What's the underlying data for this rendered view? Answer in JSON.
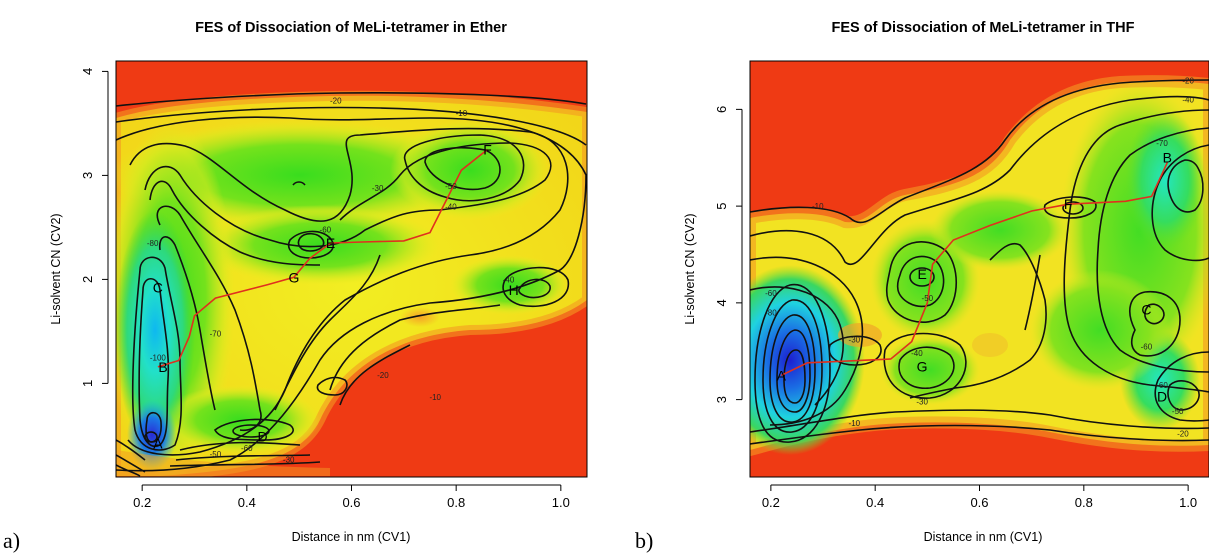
{
  "chart_data": [
    {
      "type": "contour",
      "panel_label": "a)",
      "title": "FES of Dissociation of MeLi-tetramer in Ether",
      "xlabel": "Distance in nm (CV1)",
      "ylabel": "Li-solvent CN (CV2)",
      "xlim": [
        0.15,
        1.05
      ],
      "ylim": [
        0.1,
        4.1
      ],
      "xticks": [
        0.2,
        0.4,
        0.6,
        0.8,
        1.0
      ],
      "xtick_labels": [
        "0.2",
        "0.4",
        "0.6",
        "0.8",
        "1.0"
      ],
      "yticks": [
        1,
        2,
        3,
        4
      ],
      "ytick_labels": [
        "1",
        "2",
        "3",
        "4"
      ],
      "states": [
        {
          "label": "A",
          "x": 0.23,
          "y": 0.42
        },
        {
          "label": "B",
          "x": 0.24,
          "y": 1.16
        },
        {
          "label": "C",
          "x": 0.23,
          "y": 1.92
        },
        {
          "label": "D",
          "x": 0.43,
          "y": 0.49
        },
        {
          "label": "E",
          "x": 0.56,
          "y": 2.35
        },
        {
          "label": "F",
          "x": 0.86,
          "y": 3.25
        },
        {
          "label": "G",
          "x": 0.49,
          "y": 2.02
        },
        {
          "label": "H",
          "x": 0.91,
          "y": 1.9
        }
      ],
      "contour_labels": [
        {
          "text": "-10",
          "x": 0.81,
          "y": 3.6
        },
        {
          "text": "-20",
          "x": 0.57,
          "y": 3.72
        },
        {
          "text": "-30",
          "x": 0.65,
          "y": 2.88
        },
        {
          "text": "-40",
          "x": 0.79,
          "y": 2.7
        },
        {
          "text": "-50",
          "x": 0.79,
          "y": 2.9
        },
        {
          "text": "-60",
          "x": 0.55,
          "y": 2.48
        },
        {
          "text": "-80",
          "x": 0.22,
          "y": 2.35
        },
        {
          "text": "-70",
          "x": 0.34,
          "y": 1.48
        },
        {
          "text": "-100",
          "x": 0.23,
          "y": 1.25
        },
        {
          "text": "-40",
          "x": 0.9,
          "y": 2.0
        },
        {
          "text": "-20",
          "x": 0.66,
          "y": 1.08
        },
        {
          "text": "-10",
          "x": 0.76,
          "y": 0.87
        },
        {
          "text": "-60",
          "x": 0.4,
          "y": 0.38
        },
        {
          "text": "-50",
          "x": 0.34,
          "y": 0.32
        },
        {
          "text": "-30",
          "x": 0.48,
          "y": 0.27
        }
      ],
      "path": [
        [
          0.23,
          1.16
        ],
        [
          0.27,
          1.22
        ],
        [
          0.29,
          1.45
        ],
        [
          0.3,
          1.65
        ],
        [
          0.34,
          1.82
        ],
        [
          0.44,
          1.95
        ],
        [
          0.49,
          2.02
        ],
        [
          0.52,
          2.2
        ],
        [
          0.56,
          2.35
        ],
        [
          0.62,
          2.36
        ],
        [
          0.7,
          2.37
        ],
        [
          0.75,
          2.45
        ],
        [
          0.78,
          2.75
        ],
        [
          0.81,
          3.05
        ],
        [
          0.86,
          3.25
        ]
      ]
    },
    {
      "type": "contour",
      "panel_label": "b)",
      "title": "FES of Dissociation of MeLi-tetramer in THF",
      "xlabel": "Distance in nm (CV1)",
      "ylabel": "Li-solvent CN (CV2)",
      "xlim": [
        0.16,
        1.04
      ],
      "ylim": [
        2.2,
        6.5
      ],
      "xticks": [
        0.2,
        0.4,
        0.6,
        0.8,
        1.0
      ],
      "xtick_labels": [
        "0.2",
        "0.4",
        "0.6",
        "0.8",
        "1.0"
      ],
      "yticks": [
        3,
        4,
        5,
        6
      ],
      "ytick_labels": [
        "3",
        "4",
        "5",
        "6"
      ],
      "states": [
        {
          "label": "A",
          "x": 0.22,
          "y": 3.25
        },
        {
          "label": "B",
          "x": 0.96,
          "y": 5.5
        },
        {
          "label": "C",
          "x": 0.92,
          "y": 3.93
        },
        {
          "label": "D",
          "x": 0.95,
          "y": 3.03
        },
        {
          "label": "E",
          "x": 0.49,
          "y": 4.3
        },
        {
          "label": "F",
          "x": 0.77,
          "y": 5.02
        },
        {
          "label": "G",
          "x": 0.49,
          "y": 3.34
        }
      ],
      "contour_labels": [
        {
          "text": "-10",
          "x": 0.29,
          "y": 5.0
        },
        {
          "text": "-20",
          "x": 1.0,
          "y": 6.3
        },
        {
          "text": "-40",
          "x": 1.0,
          "y": 6.1
        },
        {
          "text": "-70",
          "x": 0.95,
          "y": 5.65
        },
        {
          "text": "-60",
          "x": 0.2,
          "y": 4.1
        },
        {
          "text": "-80",
          "x": 0.2,
          "y": 3.9
        },
        {
          "text": "-30",
          "x": 0.36,
          "y": 3.62
        },
        {
          "text": "-50",
          "x": 0.5,
          "y": 4.05
        },
        {
          "text": "-40",
          "x": 0.48,
          "y": 3.48
        },
        {
          "text": "-60",
          "x": 0.92,
          "y": 3.55
        },
        {
          "text": "-60",
          "x": 0.95,
          "y": 3.15
        },
        {
          "text": "-30",
          "x": 0.49,
          "y": 2.98
        },
        {
          "text": "-10",
          "x": 0.36,
          "y": 2.76
        },
        {
          "text": "-20",
          "x": 0.99,
          "y": 2.65
        },
        {
          "text": "-50",
          "x": 0.98,
          "y": 2.88
        }
      ],
      "path": [
        [
          0.22,
          3.25
        ],
        [
          0.27,
          3.38
        ],
        [
          0.35,
          3.4
        ],
        [
          0.43,
          3.42
        ],
        [
          0.47,
          3.6
        ],
        [
          0.5,
          4.0
        ],
        [
          0.51,
          4.4
        ],
        [
          0.55,
          4.65
        ],
        [
          0.62,
          4.8
        ],
        [
          0.7,
          4.95
        ],
        [
          0.77,
          5.02
        ],
        [
          0.88,
          5.05
        ],
        [
          0.93,
          5.1
        ],
        [
          0.96,
          5.45
        ]
      ]
    }
  ]
}
